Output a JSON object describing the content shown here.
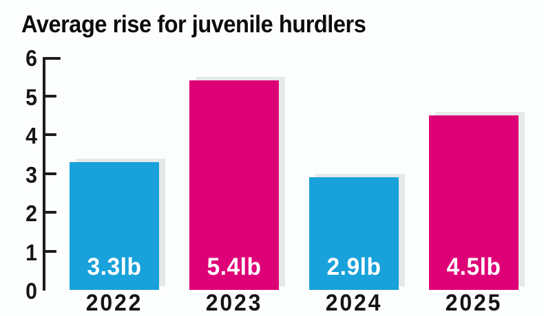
{
  "title": "Average rise for juvenile hurdlers",
  "colors": {
    "blue": "#18a1da",
    "magenta": "#de0077",
    "axis": "#1c1c1c",
    "background": "#fcfdfd",
    "bar_value_text": "#ffffff"
  },
  "chart_data": {
    "type": "bar",
    "title": "Average rise for juvenile hurdlers",
    "categories": [
      "2022",
      "2023",
      "2024",
      "2025"
    ],
    "values": [
      3.3,
      5.4,
      2.9,
      4.5
    ],
    "bar_labels": [
      "3.3lb",
      "5.4lb",
      "2.9lb",
      "4.5lb"
    ],
    "bar_colors": [
      "#18a1da",
      "#de0077",
      "#18a1da",
      "#de0077"
    ],
    "unit": "lb",
    "xlabel": "",
    "ylabel": "",
    "ylim": [
      0,
      6
    ],
    "yticks": [
      0,
      1,
      2,
      3,
      4,
      5,
      6
    ],
    "grid": false,
    "legend": null,
    "value_label_position": "inside-bottom",
    "layout_hint": "y-axis with left tick marks only, no x-axis line, no gridlines"
  }
}
